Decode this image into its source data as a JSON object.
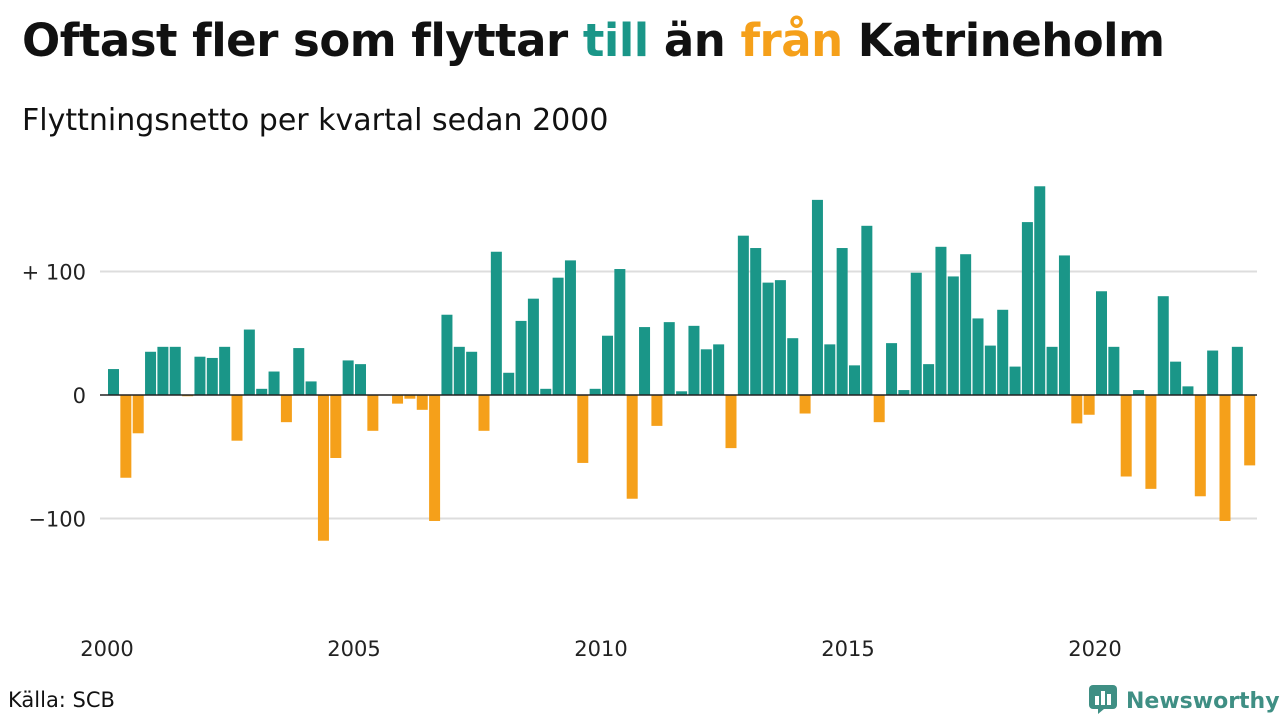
{
  "title": {
    "part1": "Oftast fler som flyttar ",
    "highlight_in": "till",
    "part2": " än ",
    "highlight_out": "från",
    "part3": " Katrineholm"
  },
  "subtitle": "Flyttningsnetto per kvartal sedan 2000",
  "source": "Källa: SCB",
  "brand": {
    "name": "Newsworthy",
    "icon": "bar-chart-logo-icon"
  },
  "colors": {
    "positive": "#1a9688",
    "negative": "#f5a01a",
    "grid": "#dddddd",
    "zero": "#222222",
    "brand": "#3f8f84"
  },
  "chart_data": {
    "type": "bar",
    "x_start": 2000,
    "periods_per_year": 4,
    "x_ticks": [
      "2000",
      "2005",
      "2010",
      "2015",
      "2020"
    ],
    "y_ticks": [
      {
        "value": 100,
        "label": "+ 100"
      },
      {
        "value": 0,
        "label": "0"
      },
      {
        "value": -100,
        "label": "−100"
      }
    ],
    "ylim": [
      -150,
      185
    ],
    "grid": true,
    "values": [
      21,
      -67,
      -31,
      35,
      39,
      39,
      -1,
      31,
      30,
      39,
      -37,
      53,
      5,
      19,
      -22,
      38,
      11,
      -118,
      -51,
      28,
      25,
      -29,
      0,
      -7,
      -3,
      -12,
      -102,
      65,
      39,
      35,
      -29,
      116,
      18,
      60,
      78,
      5,
      95,
      109,
      -55,
      5,
      48,
      102,
      -84,
      55,
      -25,
      59,
      3,
      56,
      37,
      41,
      -43,
      129,
      119,
      91,
      93,
      46,
      -15,
      158,
      41,
      119,
      24,
      137,
      -22,
      42,
      4,
      99,
      25,
      120,
      96,
      114,
      62,
      40,
      69,
      23,
      140,
      169,
      39,
      113,
      -23,
      -16,
      84,
      39,
      -66,
      4,
      -76,
      80,
      27,
      7,
      -82,
      36,
      -102,
      39,
      -57
    ]
  }
}
